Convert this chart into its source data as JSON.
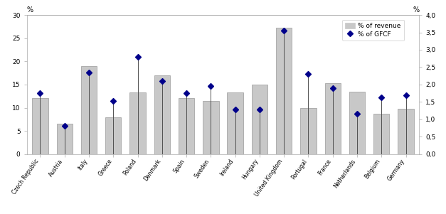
{
  "categories": [
    "Czech Republic",
    "Austria",
    "Italy",
    "Greece",
    "Poland",
    "Denmark",
    "Spain",
    "Sweden",
    "Ireland",
    "Hungary",
    "United Kingdom",
    "Portugal",
    "France",
    "Netherlands",
    "Belgium",
    "Germany"
  ],
  "revenue": [
    12.0,
    6.5,
    19.0,
    8.0,
    13.3,
    17.0,
    12.0,
    11.5,
    13.3,
    15.0,
    27.3,
    10.0,
    15.3,
    13.5,
    8.7,
    9.7
  ],
  "gfcf": [
    1.75,
    0.82,
    2.35,
    1.52,
    2.8,
    2.1,
    1.75,
    1.95,
    1.28,
    1.28,
    3.55,
    2.3,
    1.9,
    1.15,
    1.62,
    1.7
  ],
  "bar_color": "#c8c8c8",
  "dot_color": "#00008B",
  "line_color": "#505050",
  "left_ylim": [
    0,
    30
  ],
  "right_ylim": [
    0.0,
    4.0
  ],
  "left_yticks": [
    0,
    5,
    10,
    15,
    20,
    25,
    30
  ],
  "right_yticks": [
    0.0,
    0.5,
    1.0,
    1.5,
    2.0,
    2.5,
    3.0,
    3.5,
    4.0
  ],
  "left_ylabel": "%",
  "right_ylabel": "%",
  "legend_revenue": "% of revenue",
  "legend_gfcf": "% of GFCF",
  "bg_color": "#ffffff"
}
